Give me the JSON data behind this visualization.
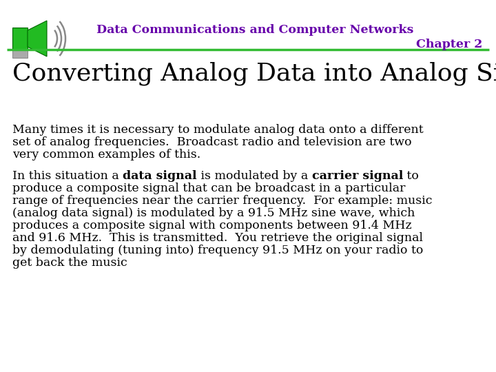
{
  "bg_color": "#ffffff",
  "header_title1": "Data Communications and Computer Networks",
  "header_title2": "Chapter 2",
  "header_color": "#6600aa",
  "divider_color": "#33bb33",
  "slide_title": "Converting Analog Data into Analog Signals",
  "slide_title_color": "#000000",
  "p1_line1": "Many times it is necessary to modulate analog data onto a different",
  "p1_line2": "set of analog frequencies.  Broadcast radio and television are two",
  "p1_line3": "very common examples of this.",
  "body_color": "#000000",
  "body_fontsize": 12.5,
  "title_fontsize": 26,
  "header_fontsize": 12.5,
  "speaker_green": "#22bb22",
  "speaker_dark": "#006600",
  "speaker_gray": "#999999",
  "wave_color": "#888888"
}
